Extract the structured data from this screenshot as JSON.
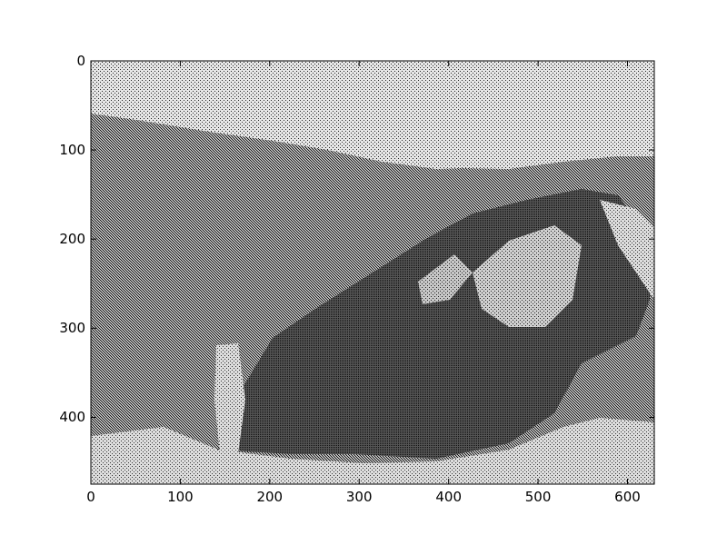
{
  "figure": {
    "type": "image",
    "description": "",
    "x_ticks": [
      "0",
      "100",
      "200",
      "300",
      "400",
      "500",
      "600"
    ],
    "y_ticks": [
      "0",
      "100",
      "200",
      "300",
      "400"
    ],
    "x_range": [
      0,
      630
    ],
    "y_range": [
      0,
      475
    ],
    "y_inverted": true,
    "colormap": "grayscale dithered",
    "colors": {
      "background": "#ffffff",
      "axes": "#000000",
      "sky": "#d8d8d8",
      "hills": "#9a9a9a",
      "rock_dark": "#3c3c3c",
      "rock_light": "#bdbdbd",
      "foreground": "#cfcfcf"
    }
  }
}
